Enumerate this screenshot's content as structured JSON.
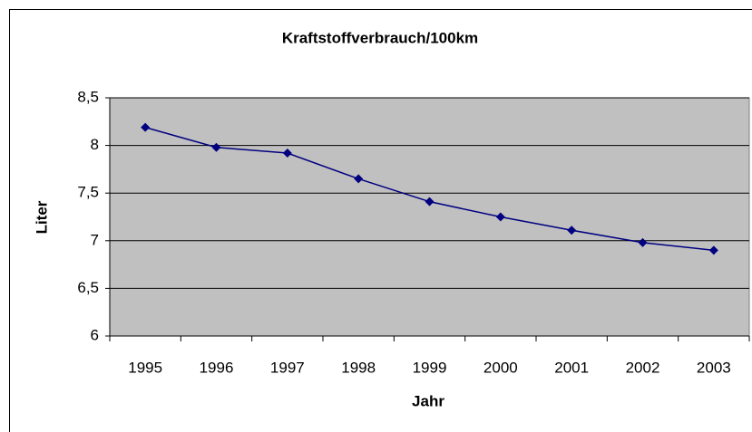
{
  "chart_data": {
    "type": "line",
    "title": "Kraftstoffverbrauch/100km",
    "x_label": "Jahr",
    "y_label": "Liter",
    "categories": [
      "1995",
      "1996",
      "1997",
      "1998",
      "1999",
      "2000",
      "2001",
      "2002",
      "2003"
    ],
    "series": [
      {
        "name": "Liter",
        "color": "#000080",
        "values": [
          8.19,
          7.98,
          7.92,
          7.65,
          7.41,
          7.25,
          7.11,
          6.98,
          6.9
        ]
      }
    ],
    "ylim": [
      6,
      8.5
    ],
    "yticks": [
      6,
      {
        "value": 6.5,
        "label": "6,5"
      },
      7,
      {
        "value": 7.5,
        "label": "7,5"
      },
      8,
      {
        "value": 8.5,
        "label": "8,5"
      }
    ],
    "grid": true,
    "plot_background": "#c0c0c0"
  }
}
